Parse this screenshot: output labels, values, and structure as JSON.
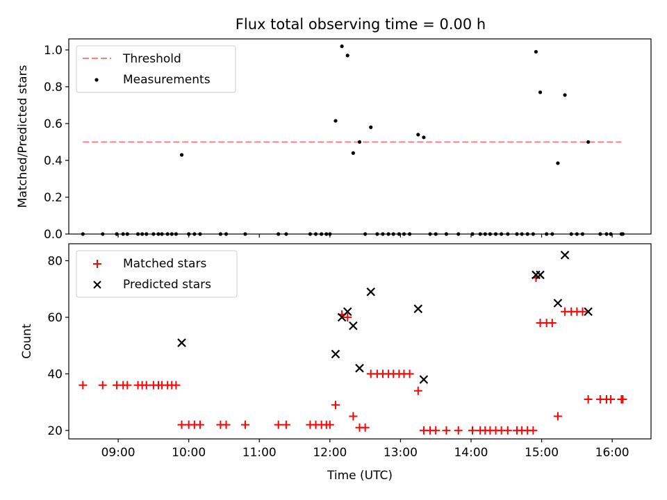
{
  "chart_data": [
    {
      "type": "scatter",
      "title": "Flux total observing time = 0.00 h",
      "xlabel": "",
      "ylabel": "Matched/Predicted stars",
      "xlim": [
        8.3,
        16.55
      ],
      "ylim": [
        0,
        1.06
      ],
      "yticks": [
        0.0,
        0.2,
        0.4,
        0.6,
        0.8,
        1.0
      ],
      "ytick_labels": [
        "0.0",
        "0.2",
        "0.4",
        "0.6",
        "0.8",
        "1.0"
      ],
      "legend_position": "top-left",
      "series": [
        {
          "name": "Threshold",
          "kind": "dashed-line",
          "color": "#ff7f7f",
          "x": [
            8.5,
            16.13
          ],
          "y": [
            0.5,
            0.5
          ]
        },
        {
          "name": "Measurements",
          "kind": "dot",
          "color": "#000000",
          "points": [
            [
              8.5,
              0
            ],
            [
              8.78,
              0
            ],
            [
              8.98,
              0
            ],
            [
              9.07,
              0
            ],
            [
              9.13,
              0
            ],
            [
              9.28,
              0
            ],
            [
              9.34,
              0
            ],
            [
              9.4,
              0
            ],
            [
              9.5,
              0
            ],
            [
              9.57,
              0
            ],
            [
              9.62,
              0
            ],
            [
              9.7,
              0
            ],
            [
              9.76,
              0
            ],
            [
              9.82,
              0
            ],
            [
              9.9,
              0.43
            ],
            [
              10.0,
              0
            ],
            [
              10.08,
              0
            ],
            [
              10.16,
              0
            ],
            [
              10.45,
              0
            ],
            [
              10.53,
              0
            ],
            [
              10.8,
              0
            ],
            [
              11.27,
              0
            ],
            [
              11.38,
              0
            ],
            [
              11.72,
              0
            ],
            [
              11.8,
              0
            ],
            [
              11.88,
              0
            ],
            [
              11.95,
              0
            ],
            [
              12.0,
              0
            ],
            [
              12.08,
              0.615
            ],
            [
              12.17,
              1.02
            ],
            [
              12.25,
              0.97
            ],
            [
              12.33,
              0.44
            ],
            [
              12.42,
              0.5
            ],
            [
              12.5,
              0
            ],
            [
              12.58,
              0.58
            ],
            [
              12.67,
              0
            ],
            [
              12.75,
              0
            ],
            [
              12.83,
              0
            ],
            [
              12.9,
              0
            ],
            [
              12.98,
              0
            ],
            [
              13.05,
              0
            ],
            [
              13.13,
              0
            ],
            [
              13.25,
              0.54
            ],
            [
              13.33,
              0.525
            ],
            [
              13.42,
              0
            ],
            [
              13.5,
              0
            ],
            [
              13.65,
              0
            ],
            [
              13.82,
              0
            ],
            [
              14.02,
              0
            ],
            [
              14.13,
              0
            ],
            [
              14.2,
              0
            ],
            [
              14.27,
              0
            ],
            [
              14.35,
              0
            ],
            [
              14.43,
              0
            ],
            [
              14.52,
              0
            ],
            [
              14.65,
              0
            ],
            [
              14.72,
              0
            ],
            [
              14.8,
              0
            ],
            [
              14.88,
              0
            ],
            [
              14.92,
              0.99
            ],
            [
              14.98,
              0.77
            ],
            [
              15.07,
              0
            ],
            [
              15.15,
              0
            ],
            [
              15.23,
              0.385
            ],
            [
              15.33,
              0.755
            ],
            [
              15.42,
              0
            ],
            [
              15.5,
              0
            ],
            [
              15.58,
              0
            ],
            [
              15.66,
              0.5
            ],
            [
              15.83,
              0
            ],
            [
              15.92,
              0
            ],
            [
              15.98,
              0
            ],
            [
              16.13,
              0
            ],
            [
              16.15,
              0
            ]
          ]
        }
      ]
    },
    {
      "type": "scatter",
      "title": "",
      "xlabel": "Time (UTC)",
      "ylabel": "Count",
      "xlim": [
        8.3,
        16.55
      ],
      "ylim": [
        17,
        86
      ],
      "xticks": [
        9,
        10,
        11,
        12,
        13,
        14,
        15,
        16
      ],
      "xtick_labels": [
        "09:00",
        "10:00",
        "11:00",
        "12:00",
        "13:00",
        "14:00",
        "15:00",
        "16:00"
      ],
      "yticks": [
        20,
        40,
        60,
        80
      ],
      "ytick_labels": [
        "20",
        "40",
        "60",
        "80"
      ],
      "legend_position": "top-left",
      "series": [
        {
          "name": "Matched stars",
          "kind": "plus",
          "color": "#ff0000",
          "points": [
            [
              8.5,
              36
            ],
            [
              8.78,
              36
            ],
            [
              8.98,
              36
            ],
            [
              9.07,
              36
            ],
            [
              9.13,
              36
            ],
            [
              9.28,
              36
            ],
            [
              9.34,
              36
            ],
            [
              9.4,
              36
            ],
            [
              9.5,
              36
            ],
            [
              9.57,
              36
            ],
            [
              9.62,
              36
            ],
            [
              9.7,
              36
            ],
            [
              9.76,
              36
            ],
            [
              9.82,
              36
            ],
            [
              9.9,
              22
            ],
            [
              10.0,
              22
            ],
            [
              10.08,
              22
            ],
            [
              10.16,
              22
            ],
            [
              10.45,
              22
            ],
            [
              10.53,
              22
            ],
            [
              10.8,
              22
            ],
            [
              11.27,
              22
            ],
            [
              11.38,
              22
            ],
            [
              11.72,
              22
            ],
            [
              11.8,
              22
            ],
            [
              11.88,
              22
            ],
            [
              11.95,
              22
            ],
            [
              12.0,
              22
            ],
            [
              12.08,
              29
            ],
            [
              12.17,
              61
            ],
            [
              12.25,
              60
            ],
            [
              12.33,
              25
            ],
            [
              12.42,
              21
            ],
            [
              12.5,
              21
            ],
            [
              12.58,
              40
            ],
            [
              12.67,
              40
            ],
            [
              12.75,
              40
            ],
            [
              12.83,
              40
            ],
            [
              12.9,
              40
            ],
            [
              12.98,
              40
            ],
            [
              13.05,
              40
            ],
            [
              13.13,
              40
            ],
            [
              13.25,
              34
            ],
            [
              13.33,
              20
            ],
            [
              13.42,
              20
            ],
            [
              13.5,
              20
            ],
            [
              13.65,
              20
            ],
            [
              13.82,
              20
            ],
            [
              14.02,
              20
            ],
            [
              14.13,
              20
            ],
            [
              14.2,
              20
            ],
            [
              14.27,
              20
            ],
            [
              14.35,
              20
            ],
            [
              14.43,
              20
            ],
            [
              14.52,
              20
            ],
            [
              14.65,
              20
            ],
            [
              14.72,
              20
            ],
            [
              14.8,
              20
            ],
            [
              14.88,
              20
            ],
            [
              14.92,
              74
            ],
            [
              14.98,
              58
            ],
            [
              15.07,
              58
            ],
            [
              15.15,
              58
            ],
            [
              15.23,
              25
            ],
            [
              15.33,
              62
            ],
            [
              15.42,
              62
            ],
            [
              15.5,
              62
            ],
            [
              15.58,
              62
            ],
            [
              15.66,
              31
            ],
            [
              15.83,
              31
            ],
            [
              15.92,
              31
            ],
            [
              15.98,
              31
            ],
            [
              16.13,
              31
            ],
            [
              16.15,
              31
            ]
          ]
        },
        {
          "name": "Predicted stars",
          "kind": "cross",
          "color": "#000000",
          "points": [
            [
              9.9,
              51
            ],
            [
              12.08,
              47
            ],
            [
              12.17,
              60
            ],
            [
              12.25,
              62
            ],
            [
              12.33,
              57
            ],
            [
              12.42,
              42
            ],
            [
              12.58,
              69
            ],
            [
              13.25,
              63
            ],
            [
              13.33,
              38
            ],
            [
              14.92,
              75
            ],
            [
              14.98,
              75
            ],
            [
              15.23,
              65
            ],
            [
              15.33,
              82
            ],
            [
              15.66,
              62
            ]
          ]
        }
      ]
    }
  ]
}
